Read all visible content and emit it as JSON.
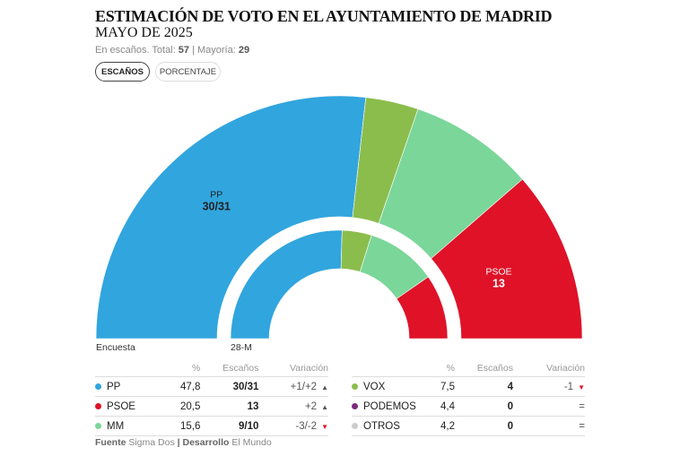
{
  "header": {
    "title": "ESTIMACIÓN DE VOTO EN EL AYUNTAMIENTO DE MADRID",
    "subtitle": "MAYO DE 2025",
    "note_prefix": "En escaños. Total:",
    "total": "57",
    "note_sep": "| Mayoría:",
    "majority": "29"
  },
  "toggle": {
    "seats": "ESCAÑOS",
    "percent": "PORCENTAJE"
  },
  "chart_data": {
    "type": "pie",
    "subtype": "half-donut",
    "total_seats": 57,
    "rings": [
      {
        "label": "Encuesta",
        "segments": [
          {
            "name": "PP",
            "value": 30.5,
            "label": "30/31",
            "color": "#31a5de"
          },
          {
            "name": "VOX",
            "value": 4,
            "color": "#8bbd4c"
          },
          {
            "name": "MM",
            "value": 9.5,
            "color": "#7bd69a"
          },
          {
            "name": "PSOE",
            "value": 13,
            "label": "13",
            "color": "#df1228"
          }
        ]
      },
      {
        "label": "28-M",
        "segments": [
          {
            "name": "PP",
            "value": 29,
            "color": "#31a5de"
          },
          {
            "name": "VOX",
            "value": 5,
            "color": "#8bbd4c"
          },
          {
            "name": "MM",
            "value": 12,
            "color": "#7bd69a"
          },
          {
            "name": "PSOE",
            "value": 11,
            "color": "#df1228"
          }
        ]
      }
    ]
  },
  "table": {
    "headers": [
      "%",
      "Escaños",
      "Variación"
    ],
    "left": [
      {
        "party": "PP",
        "color": "#31a5de",
        "pct": "47,8",
        "seats": "30/31",
        "var": "+1/+2",
        "dir": "up"
      },
      {
        "party": "PSOE",
        "color": "#df1228",
        "pct": "20,5",
        "seats": "13",
        "var": "+2",
        "dir": "up"
      },
      {
        "party": "MM",
        "color": "#7bd69a",
        "pct": "15,6",
        "seats": "9/10",
        "var": "-3/-2",
        "dir": "down"
      }
    ],
    "right": [
      {
        "party": "VOX",
        "color": "#8bbd4c",
        "pct": "7,5",
        "seats": "4",
        "var": "-1",
        "dir": "down"
      },
      {
        "party": "PODEMOS",
        "color": "#7b2a7e",
        "pct": "4,4",
        "seats": "0",
        "var": "=",
        "dir": ""
      },
      {
        "party": "OTROS",
        "color": "#cccccc",
        "pct": "4,2",
        "seats": "0",
        "var": "=",
        "dir": ""
      }
    ]
  },
  "footer": {
    "source_label": "Fuente",
    "source": "Sigma Dos",
    "dev_label": "| Desarrollo",
    "dev": "El Mundo"
  }
}
